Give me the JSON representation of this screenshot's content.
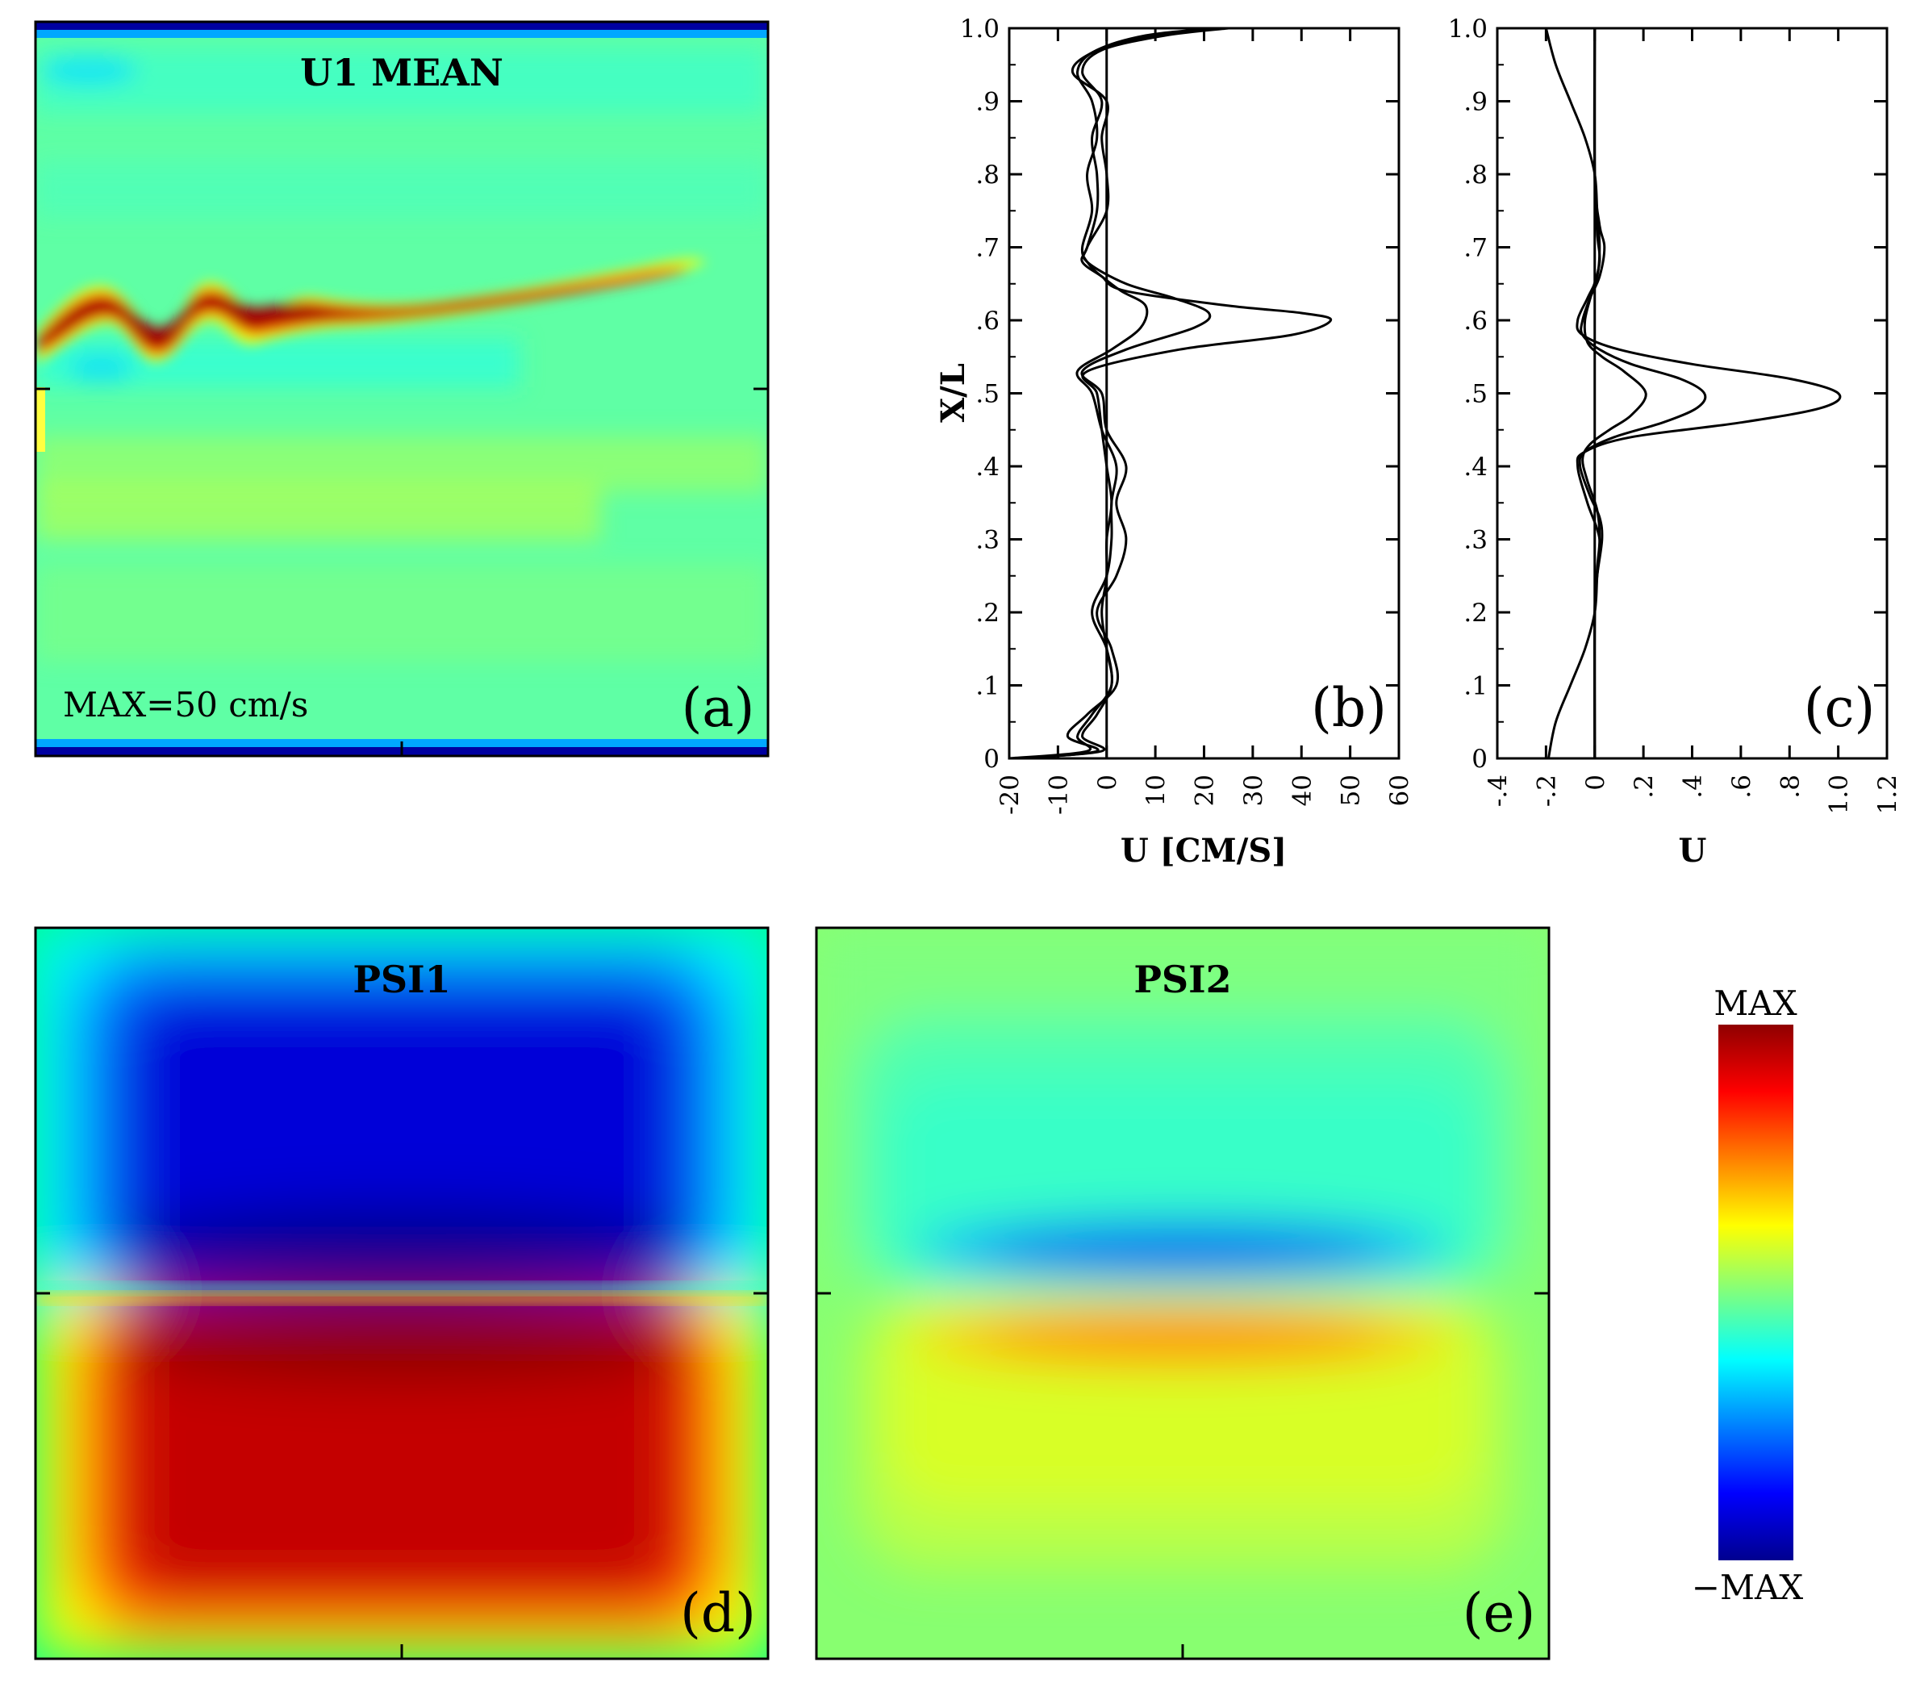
{
  "colormap": {
    "stops": [
      "#00008f",
      "#0000ff",
      "#00ffff",
      "#7fff7f",
      "#ffff00",
      "#ff0000",
      "#8f0000"
    ]
  },
  "panels": {
    "a": {
      "title": "U1 MEAN",
      "label": "(a)",
      "note": "MAX=50 cm/s"
    },
    "b": {
      "label": "(b)"
    },
    "c": {
      "label": "(c)"
    },
    "d": {
      "title": "PSI1",
      "label": "(d)"
    },
    "e": {
      "title": "PSI2",
      "label": "(e)"
    }
  },
  "colorbar": {
    "max_label": "MAX",
    "min_label": "−MAX"
  },
  "chart_data": [
    {
      "id": "a",
      "type": "heatmap",
      "title": "U1 MEAN",
      "annotation": "MAX=50 cm/s",
      "description_values": {
        "jet_core_y": 0.6,
        "jet_end_x": 0.9,
        "jet_peak": 1.0
      }
    },
    {
      "id": "b",
      "type": "line",
      "xlabel": "U [CM/S]",
      "ylabel": "X/L",
      "xlim": [
        -20,
        60
      ],
      "ylim": [
        0,
        1
      ],
      "xticks": [
        "-20",
        "-10",
        "0",
        "10",
        "20",
        "30",
        "40",
        "50",
        "60"
      ],
      "yticks": [
        "0",
        ".1",
        ".2",
        ".3",
        ".4",
        ".5",
        ".6",
        ".7",
        ".8",
        ".9",
        "1.0"
      ],
      "series": [
        {
          "y": [
            0,
            0.01,
            0.03,
            0.06,
            0.1,
            0.15,
            0.2,
            0.25,
            0.3,
            0.35,
            0.4,
            0.45,
            0.5,
            0.53,
            0.56,
            0.58,
            0.6,
            0.61,
            0.62,
            0.64,
            0.66,
            0.68,
            0.7,
            0.75,
            0.8,
            0.85,
            0.9,
            0.94,
            0.97,
            0.99,
            1.0
          ],
          "x": [
            -20,
            -4,
            -6,
            -3,
            1,
            0,
            -1,
            0,
            0,
            1,
            0,
            -1,
            -2,
            -4,
            15,
            38,
            46,
            40,
            25,
            4,
            -1,
            -4,
            -5,
            -3,
            -4,
            -2,
            -3,
            -6,
            -2,
            10,
            24
          ]
        },
        {
          "y": [
            0,
            0.01,
            0.03,
            0.06,
            0.1,
            0.15,
            0.2,
            0.25,
            0.3,
            0.35,
            0.4,
            0.45,
            0.5,
            0.53,
            0.56,
            0.59,
            0.61,
            0.63,
            0.65,
            0.68,
            0.7,
            0.75,
            0.8,
            0.85,
            0.9,
            0.94,
            0.97,
            0.99,
            1.0
          ],
          "x": [
            -18,
            -2,
            -8,
            -4,
            2,
            1,
            -2,
            2,
            4,
            2,
            4,
            0,
            -1,
            -5,
            4,
            18,
            21,
            14,
            4,
            -4,
            -4,
            0,
            0,
            -1,
            0,
            -7,
            -2,
            8,
            22
          ]
        },
        {
          "y": [
            0,
            0.01,
            0.03,
            0.06,
            0.1,
            0.15,
            0.2,
            0.25,
            0.3,
            0.35,
            0.4,
            0.45,
            0.5,
            0.53,
            0.56,
            0.59,
            0.62,
            0.64,
            0.66,
            0.68,
            0.7,
            0.75,
            0.8,
            0.85,
            0.9,
            0.94,
            0.97,
            0.99,
            1.0
          ],
          "x": [
            -19,
            -1,
            -5,
            -2,
            1,
            0,
            -3,
            0,
            1,
            1,
            2,
            -1,
            -3,
            -6,
            1,
            7,
            8,
            3,
            -1,
            -5,
            -4,
            -2,
            -2,
            -3,
            -1,
            -5,
            -1,
            12,
            25
          ]
        }
      ]
    },
    {
      "id": "c",
      "type": "line",
      "xlabel": "U",
      "xlim": [
        -0.4,
        1.2
      ],
      "ylim": [
        0,
        1
      ],
      "xticks": [
        "-.4",
        "-.2",
        "0",
        ".2",
        ".4",
        ".6",
        ".8",
        "1.0",
        "1.2"
      ],
      "yticks": [
        "0",
        ".1",
        ".2",
        ".3",
        ".4",
        ".5",
        ".6",
        ".7",
        ".8",
        ".9",
        "1.0"
      ],
      "series": [
        {
          "y": [
            0,
            0.05,
            0.1,
            0.15,
            0.2,
            0.25,
            0.3,
            0.35,
            0.4,
            0.42,
            0.44,
            0.46,
            0.48,
            0.5,
            0.52,
            0.54,
            0.56,
            0.58,
            0.6,
            0.63,
            0.66,
            0.7,
            0.75,
            0.8,
            0.85,
            0.9,
            0.95,
            1.0
          ],
          "x": [
            -0.19,
            -0.16,
            -0.1,
            -0.04,
            0,
            0.01,
            0.02,
            -0.03,
            -0.07,
            -0.04,
            0.15,
            0.6,
            0.93,
            1.0,
            0.8,
            0.4,
            0.1,
            -0.05,
            -0.07,
            -0.03,
            0.01,
            0.02,
            0.01,
            0,
            -0.04,
            -0.1,
            -0.16,
            -0.2
          ]
        },
        {
          "y": [
            0,
            0.2,
            0.25,
            0.3,
            0.33,
            0.36,
            0.4,
            0.42,
            0.44,
            0.46,
            0.48,
            0.5,
            0.52,
            0.54,
            0.56,
            0.58,
            0.6,
            0.63,
            0.66,
            0.7,
            0.73,
            0.8,
            1.0
          ],
          "x": [
            0,
            0,
            0.01,
            0.03,
            0.02,
            -0.02,
            -0.06,
            -0.04,
            0.08,
            0.28,
            0.42,
            0.45,
            0.35,
            0.15,
            0.02,
            -0.05,
            -0.05,
            -0.02,
            0.02,
            0.04,
            0.02,
            0,
            0
          ]
        },
        {
          "y": [
            0,
            0.2,
            0.26,
            0.3,
            0.34,
            0.38,
            0.41,
            0.43,
            0.45,
            0.47,
            0.5,
            0.53,
            0.55,
            0.57,
            0.6,
            0.64,
            0.68,
            0.72,
            0.8,
            1.0
          ],
          "x": [
            0,
            0,
            0.01,
            0.02,
            0.01,
            -0.03,
            -0.05,
            -0.02,
            0.06,
            0.15,
            0.21,
            0.12,
            0.03,
            -0.03,
            -0.04,
            -0.01,
            0.02,
            0.01,
            0,
            0
          ]
        }
      ]
    },
    {
      "id": "d",
      "type": "heatmap",
      "title": "PSI1"
    },
    {
      "id": "e",
      "type": "heatmap",
      "title": "PSI2"
    }
  ]
}
